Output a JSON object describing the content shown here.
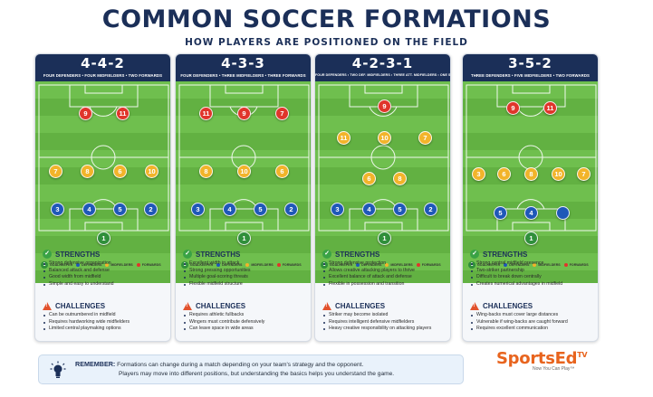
{
  "title": "COMMON SOCCER FORMATIONS",
  "subtitle": "HOW PLAYERS ARE POSITIONED ON THE FIELD",
  "legend": {
    "goalkeeper": "GOALKEEPER",
    "defenders": "DEFENDERS",
    "midfielders": "MIDFIELDERS",
    "forwards": "FORWARDS",
    "goalkeeper_number": "1"
  },
  "colors": {
    "navy": "#1b2f58",
    "forward": "#e0352b",
    "midfielder": "#f2b42a",
    "defender": "#1f58b8",
    "goalkeeper": "#2f8f3a",
    "accent_orange": "#e8641e"
  },
  "strengths_heading": "STRENGTHS",
  "challenges_heading": "CHALLENGES",
  "formations": [
    {
      "name": "4-4-2",
      "description": "FOUR DEFENDERS • FOUR MIDFIELDERS • TWO FORWARDS",
      "strengths": [
        "Strong defensive organization",
        "Balanced attack and defense",
        "Good width from midfield",
        "Simple and easy to understand"
      ],
      "challenges": [
        "Can be outnumbered in midfield",
        "Requires hardworking wide midfielders",
        "Limited central playmaking options"
      ]
    },
    {
      "name": "4-3-3",
      "description": "FOUR DEFENDERS • THREE MIDFIELDERS • THREE FORWARDS",
      "strengths": [
        "Excellent width in attack",
        "Strong pressing opportunities",
        "Multiple goal-scoring threats",
        "Flexible midfield structure"
      ],
      "challenges": [
        "Requires athletic fullbacks",
        "Wingers must contribute defensively",
        "Can leave space in wide areas"
      ]
    },
    {
      "name": "4-2-3-1",
      "description": "FOUR DEFENDERS • TWO DEF. MIDFIELDERS • THREE ATT. MIDFIELDERS • ONE STRIKER",
      "strengths": [
        "Strong defensive protection",
        "Allows creative attacking players to thrive",
        "Excellent balance of attack and defense",
        "Flexible in possession and transition"
      ],
      "challenges": [
        "Striker may become isolated",
        "Requires intelligent defensive midfielders",
        "Heavy creative responsibility on attacking players"
      ]
    },
    {
      "name": "3-5-2",
      "description": "THREE DEFENDERS • FIVE MIDFIELDERS • TWO FORWARDS",
      "strengths": [
        "Strong central midfield presence",
        "Two-striker partnership",
        "Difficult to break down centrally",
        "Creates numerical advantages in midfield"
      ],
      "challenges": [
        "Wing-backs must cover large distances",
        "Vulnerable if wing-backs are caught forward",
        "Requires excellent communication"
      ]
    }
  ],
  "remember": {
    "label": "REMEMBER:",
    "line1": "Formations can change during a match depending on your team's strategy and the opponent.",
    "line2": "Players may move into different positions, but understanding the basics helps you understand the game."
  },
  "logo": {
    "brand": "SportsEd",
    "superscript": "TV",
    "tagline": "Now You Can Play™"
  },
  "icons": {
    "strengths": "check-circle-icon",
    "challenges": "warning-triangle-icon",
    "remember": "lightbulb-icon"
  }
}
